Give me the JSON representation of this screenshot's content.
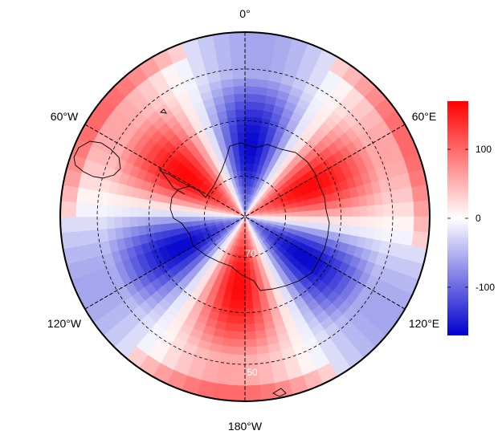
{
  "map": {
    "projection": "south-polar-stereographic",
    "meridian_labels": {
      "top": "0°",
      "upper_left": "60°W",
      "upper_right": "60°E",
      "lower_left": "120°W",
      "lower_right": "120°E",
      "bottom": "180°W"
    },
    "latitude_labels": [
      "70",
      "50"
    ],
    "colorbar": {
      "ticks": [
        {
          "label": "100",
          "value": 100
        },
        {
          "label": "0",
          "value": 0
        },
        {
          "label": "-100",
          "value": -100
        }
      ],
      "range": [
        -170,
        170
      ],
      "colors": {
        "low": "#0000cc",
        "mid": "#ffffff",
        "high": "#ff0000"
      }
    },
    "field": {
      "zonal_wave_number": 3,
      "amplitude": 165,
      "phase_maxima_longitudes_deg": [
        -55,
        65,
        185
      ],
      "ring_modulation": true
    }
  }
}
